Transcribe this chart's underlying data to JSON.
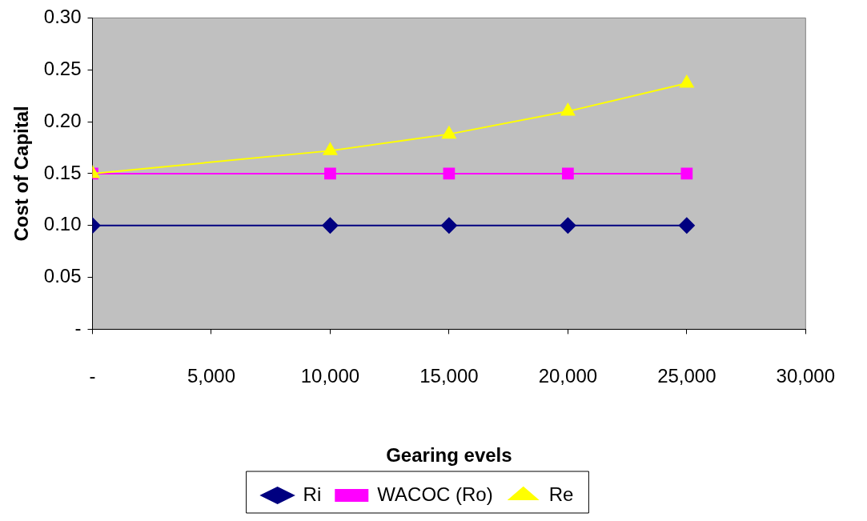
{
  "chart_data": {
    "type": "line",
    "xlabel": "Gearing evels",
    "ylabel": "Cost of Capital",
    "x": [
      0,
      10000,
      15000,
      20000,
      25000
    ],
    "series": [
      {
        "name": "Ri",
        "color": "#000080",
        "marker": "diamond",
        "values": [
          0.1,
          0.1,
          0.1,
          0.1,
          0.1
        ]
      },
      {
        "name": "WACOC (Ro)",
        "color": "#ff00ff",
        "marker": "square",
        "values": [
          0.15,
          0.15,
          0.15,
          0.15,
          0.15
        ]
      },
      {
        "name": "Re",
        "color": "#ffff00",
        "marker": "triangle",
        "values": [
          0.15,
          0.172,
          0.188,
          0.21,
          0.237
        ]
      }
    ],
    "xlim": [
      0,
      30000
    ],
    "xticks": [
      {
        "value": 0,
        "label": "-"
      },
      {
        "value": 5000,
        "label": "5,000"
      },
      {
        "value": 10000,
        "label": "10,000"
      },
      {
        "value": 15000,
        "label": "15,000"
      },
      {
        "value": 20000,
        "label": "20,000"
      },
      {
        "value": 25000,
        "label": "25,000"
      },
      {
        "value": 30000,
        "label": "30,000"
      }
    ],
    "ylim": [
      0,
      0.3
    ],
    "yticks": [
      {
        "value": 0,
        "label": "-"
      },
      {
        "value": 0.05,
        "label": "0.05"
      },
      {
        "value": 0.1,
        "label": "0.10"
      },
      {
        "value": 0.15,
        "label": "0.15"
      },
      {
        "value": 0.2,
        "label": "0.20"
      },
      {
        "value": 0.25,
        "label": "0.25"
      },
      {
        "value": 0.3,
        "label": "0.30"
      }
    ],
    "grid": false,
    "legend": "bottom",
    "line_style": "solid"
  }
}
